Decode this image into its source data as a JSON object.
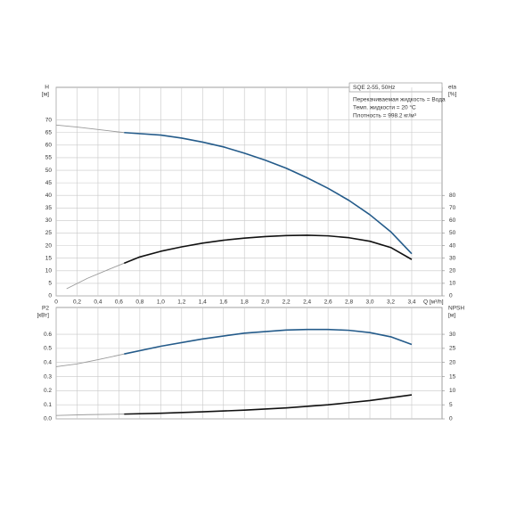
{
  "chart_data": [
    {
      "type": "line",
      "y_label": "H",
      "y_unit": "[м]",
      "y2_label": "eta",
      "y2_unit": "[%]",
      "x_label": "Q [м³/h]",
      "xlim": [
        0,
        3.69
      ],
      "xticks": [
        0,
        {
          "value": 0.2,
          "label": "0,2"
        },
        {
          "value": 0.4,
          "label": "0,4"
        },
        {
          "value": 0.6,
          "label": "0,6"
        },
        {
          "value": 0.8,
          "label": "0,8"
        },
        {
          "value": 1.0,
          "label": "1,0"
        },
        {
          "value": 1.2,
          "label": "1,2"
        },
        {
          "value": 1.4,
          "label": "1,4"
        },
        {
          "value": 1.6,
          "label": "1,6"
        },
        {
          "value": 1.8,
          "label": "1,8"
        },
        {
          "value": 2.0,
          "label": "2,0"
        },
        {
          "value": 2.2,
          "label": "2,2"
        },
        {
          "value": 2.4,
          "label": "2,4"
        },
        {
          "value": 2.6,
          "label": "2,6"
        },
        {
          "value": 2.8,
          "label": "2,8"
        },
        {
          "value": 3.0,
          "label": "3,0"
        },
        {
          "value": 3.2,
          "label": "3,2"
        },
        {
          "value": 3.4,
          "label": "3,4"
        }
      ],
      "ylim": [
        0,
        83
      ],
      "yticks": [
        0,
        5,
        10,
        15,
        20,
        25,
        30,
        35,
        40,
        45,
        50,
        55,
        60,
        65,
        70
      ],
      "y2lim": [
        0,
        166
      ],
      "y2ticks": [
        0,
        10,
        20,
        30,
        40,
        50,
        60,
        70,
        80
      ],
      "grid": true,
      "annotations": {
        "title": "SQE 2-55, 50Hz",
        "lines": [
          "Перекачиваемая жидкость = Вода",
          "Темп. жидкости = 20 °C",
          "Плотность = 998.2 кг/м³"
        ]
      },
      "series": [
        {
          "color": "#9a9a9a",
          "x": [
            0,
            0.2,
            0.4,
            0.65
          ],
          "values": [
            68,
            67.2,
            66.2,
            65
          ]
        },
        {
          "color": "#245b8a",
          "x": [
            0.65,
            1.0,
            1.2,
            1.4,
            1.6,
            1.8,
            2.0,
            2.2,
            2.4,
            2.6,
            2.8,
            3.0,
            3.2,
            3.4
          ],
          "values": [
            65,
            64,
            62.8,
            61.2,
            59.3,
            56.8,
            54,
            50.8,
            47,
            42.8,
            38,
            32.3,
            25.5,
            16.8
          ]
        },
        {
          "color": "#9a9a9a",
          "axis": "y2",
          "x": [
            0.1,
            0.3,
            0.5,
            0.65
          ],
          "values": [
            5.7,
            14,
            21,
            26
          ]
        },
        {
          "color": "#111111",
          "axis": "y2",
          "x": [
            0.65,
            0.8,
            1.0,
            1.2,
            1.4,
            1.6,
            1.8,
            2.0,
            2.2,
            2.4,
            2.6,
            2.8,
            3.0,
            3.2,
            3.4
          ],
          "values": [
            26,
            31,
            35.5,
            39,
            42,
            44.3,
            46,
            47.2,
            48,
            48.3,
            47.8,
            46.3,
            43.5,
            38.5,
            29
          ]
        }
      ]
    },
    {
      "type": "line",
      "y_label": "P2",
      "y_unit": "[кВт]",
      "y2_label": "NPSH",
      "y2_unit": "[м]",
      "xlim": [
        0,
        3.69
      ],
      "xticks": [
        0,
        0.2,
        0.4,
        0.6,
        0.8,
        1.0,
        1.2,
        1.4,
        1.6,
        1.8,
        2.0,
        2.2,
        2.4,
        2.6,
        2.8,
        3.0,
        3.2,
        3.4
      ],
      "ylim": [
        0,
        0.79
      ],
      "yticks": [
        {
          "value": 0,
          "label": "0.0"
        },
        0.1,
        0.2,
        0.3,
        0.4,
        0.5,
        0.6
      ],
      "y2lim": [
        0,
        39.5
      ],
      "y2ticks": [
        0,
        5,
        10,
        15,
        20,
        25,
        30
      ],
      "grid": true,
      "series": [
        {
          "color": "#9a9a9a",
          "x": [
            0,
            0.2,
            0.4,
            0.65
          ],
          "values": [
            0.37,
            0.39,
            0.42,
            0.46
          ]
        },
        {
          "color": "#245b8a",
          "x": [
            0.65,
            1.0,
            1.4,
            1.8,
            2.2,
            2.4,
            2.6,
            2.8,
            3.0,
            3.2,
            3.4
          ],
          "values": [
            0.46,
            0.515,
            0.567,
            0.608,
            0.63,
            0.634,
            0.634,
            0.628,
            0.612,
            0.582,
            0.528
          ]
        },
        {
          "color": "#9a9a9a",
          "axis": "y2",
          "x": [
            0,
            0.3,
            0.65
          ],
          "values": [
            1.2,
            1.5,
            1.7
          ]
        },
        {
          "color": "#111111",
          "axis": "y2",
          "x": [
            0.65,
            1.0,
            1.4,
            1.8,
            2.2,
            2.6,
            3.0,
            3.4
          ],
          "values": [
            1.7,
            2.0,
            2.5,
            3.1,
            3.9,
            5.0,
            6.5,
            8.5
          ]
        }
      ]
    }
  ]
}
